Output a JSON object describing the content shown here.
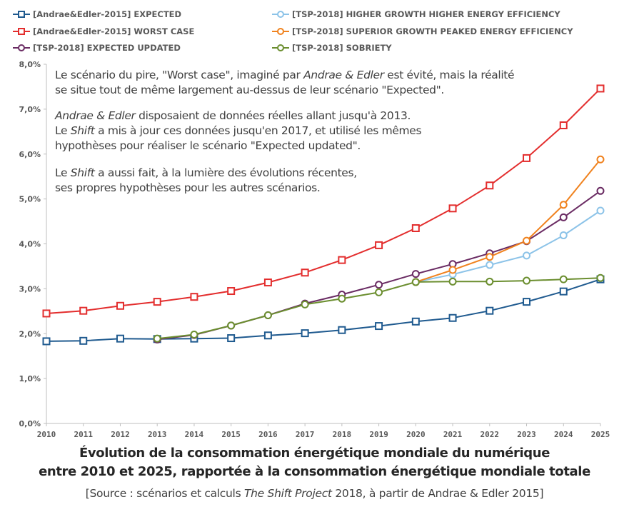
{
  "annotations": {
    "p1_line1_a": "Le scénario du pire, \"Worst case\", imaginé par ",
    "p1_line1_em": "Andrae & Edler",
    "p1_line1_b": " est évité, mais la réalité",
    "p1_line2": "se situe tout de même largement au-dessus de leur scénario \"Expected\".",
    "p2_line1_em": "Andrae & Edler",
    "p2_line1_b": " disposaient de données réelles allant jusqu'à 2013.",
    "p2_line2_a": "Le ",
    "p2_line2_em": "Shift",
    "p2_line2_b": " a mis à jour ces données jusqu'en 2017, et utilisé les mêmes",
    "p2_line3": "hypothèses pour réaliser le scénario \"Expected updated\".",
    "p3_line1_a": "Le ",
    "p3_line1_em": "Shift",
    "p3_line1_b": " a aussi fait, à la lumière des évolutions récentes,",
    "p3_line2": "ses propres hypothèses pour les autres scénarios."
  },
  "caption": {
    "line1": "Évolution de la consommation énergétique mondiale du numérique",
    "line2": "entre 2010 et 2025, rapportée à la consommation énergétique mondiale totale"
  },
  "source": {
    "a": "[Source : scénarios et calculs ",
    "em": "The Shift Project",
    "b": " 2018, à partir de Andrae & Edler 2015]"
  },
  "chart_data": {
    "type": "line",
    "x": [
      2010,
      2011,
      2012,
      2013,
      2014,
      2015,
      2016,
      2017,
      2018,
      2019,
      2020,
      2021,
      2022,
      2023,
      2024,
      2025
    ],
    "ylim": [
      0,
      8
    ],
    "yticks": [
      0,
      1,
      2,
      3,
      4,
      5,
      6,
      7,
      8
    ],
    "ytick_labels": [
      "0,0%",
      "1,0%",
      "2,0%",
      "3,0%",
      "4,0%",
      "5,0%",
      "6,0%",
      "7,0%",
      "8,0%"
    ],
    "xtick_labels": [
      "2010",
      "2011",
      "2012",
      "2013",
      "2014",
      "2015",
      "2016",
      "2017",
      "2018",
      "2019",
      "2020",
      "2021",
      "2022",
      "2023",
      "2024",
      "2025"
    ],
    "grid": false,
    "legend_position": "top",
    "series": [
      {
        "name": "[Andrae&Edler-2015] EXPECTED",
        "color": "#1f5a8f",
        "marker": "square",
        "x": [
          2010,
          2011,
          2012,
          2013,
          2014,
          2015,
          2016,
          2017,
          2018,
          2019,
          2020,
          2021,
          2022,
          2023,
          2024,
          2025
        ],
        "values": [
          1.83,
          1.84,
          1.89,
          1.88,
          1.89,
          1.9,
          1.96,
          2.01,
          2.08,
          2.17,
          2.27,
          2.35,
          2.51,
          2.71,
          2.94,
          3.21
        ]
      },
      {
        "name": "[Andrae&Edler-2015] WORST CASE",
        "color": "#e32d2d",
        "marker": "square",
        "x": [
          2010,
          2011,
          2012,
          2013,
          2014,
          2015,
          2016,
          2017,
          2018,
          2019,
          2020,
          2021,
          2022,
          2023,
          2024,
          2025
        ],
        "values": [
          2.45,
          2.51,
          2.62,
          2.71,
          2.82,
          2.95,
          3.14,
          3.36,
          3.64,
          3.97,
          4.35,
          4.79,
          5.3,
          5.91,
          6.64,
          7.46
        ]
      },
      {
        "name": "[TSP-2018] EXPECTED UPDATED",
        "color": "#6a2b63",
        "marker": "circle",
        "x": [
          2013,
          2014,
          2015,
          2016,
          2017,
          2018,
          2019,
          2020,
          2021,
          2022,
          2023,
          2024,
          2025
        ],
        "values": [
          1.87,
          1.97,
          2.18,
          2.41,
          2.67,
          2.87,
          3.09,
          3.33,
          3.55,
          3.79,
          4.06,
          4.59,
          5.18
        ]
      },
      {
        "name": "[TSP-2018] HIGHER GROWTH HIGHER ENERGY EFFICIENCY",
        "color": "#8cc3e8",
        "marker": "circle",
        "x": [
          2020,
          2021,
          2022,
          2023,
          2024,
          2025
        ],
        "values": [
          3.15,
          3.32,
          3.53,
          3.74,
          4.19,
          4.74
        ]
      },
      {
        "name": "[TSP-2018] SUPERIOR GROWTH PEAKED ENERGY EFFICIENCY",
        "color": "#f0821e",
        "marker": "circle",
        "x": [
          2020,
          2021,
          2022,
          2023,
          2024,
          2025
        ],
        "values": [
          3.15,
          3.42,
          3.71,
          4.07,
          4.87,
          5.88
        ]
      },
      {
        "name": "[TSP-2018] SOBRIETY",
        "color": "#6b8e2f",
        "marker": "circle",
        "x": [
          2013,
          2014,
          2015,
          2016,
          2017,
          2018,
          2019,
          2020,
          2021,
          2022,
          2023,
          2024,
          2025
        ],
        "values": [
          1.89,
          1.98,
          2.18,
          2.41,
          2.65,
          2.78,
          2.92,
          3.15,
          3.16,
          3.16,
          3.18,
          3.21,
          3.24
        ]
      }
    ]
  }
}
